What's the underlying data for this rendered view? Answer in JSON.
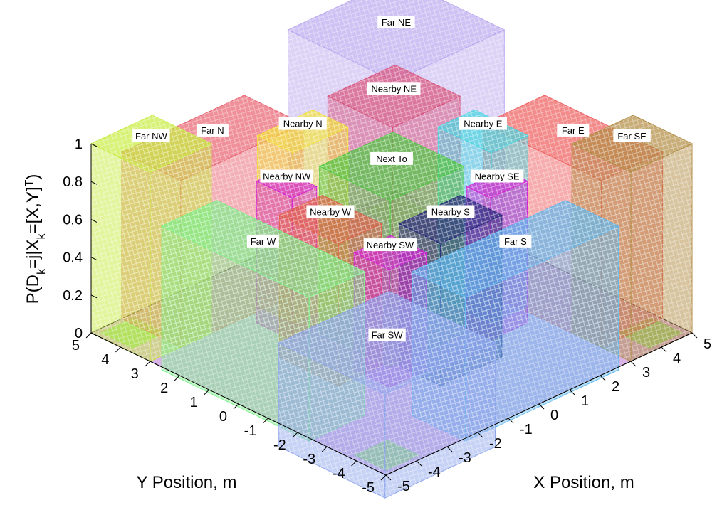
{
  "chart_data": {
    "type": "surface",
    "title": "",
    "xlabel": "X Position, m",
    "ylabel": "Y Position, m",
    "zlabel": "P(D_k=j|X_k=[X,Y]^T)",
    "zlabel_parts": {
      "p": "P(D",
      "k1": "k",
      "mid": "=j|X",
      "k2": "k",
      "eq": "=[X,Y]",
      "t": "T",
      "close": ")"
    },
    "xlim": [
      -5,
      5
    ],
    "ylim": [
      -5,
      5
    ],
    "zlim": [
      0,
      1
    ],
    "x_ticks": [
      "-5",
      "-4",
      "-3",
      "-2",
      "-1",
      "0",
      "1",
      "2",
      "3",
      "4",
      "5"
    ],
    "y_ticks": [
      "-5",
      "-4",
      "-3",
      "-2",
      "-1",
      "0",
      "1",
      "2",
      "3",
      "4",
      "5"
    ],
    "z_ticks": [
      "0",
      "0.2",
      "0.4",
      "0.6",
      "0.8",
      "1"
    ],
    "grid": false,
    "series": [
      {
        "name": "Far NE",
        "color": "#b9a6ee"
      },
      {
        "name": "Far N",
        "color": "#e8606e"
      },
      {
        "name": "Far E",
        "color": "#ee5a5a"
      },
      {
        "name": "Nearby NE",
        "color": "#d8507a"
      },
      {
        "name": "Nearby N",
        "color": "#f2e23a"
      },
      {
        "name": "Nearby E",
        "color": "#44d6e0"
      },
      {
        "name": "Far NW",
        "color": "#c6ec3c"
      },
      {
        "name": "Nearby NW",
        "color": "#d424d4"
      },
      {
        "name": "Next To",
        "color": "#4cc83e"
      },
      {
        "name": "Nearby SE",
        "color": "#d424d4"
      },
      {
        "name": "Far SE",
        "color": "#b08a40"
      },
      {
        "name": "Nearby W",
        "color": "#e06048"
      },
      {
        "name": "Nearby S",
        "color": "#26267a"
      },
      {
        "name": "Nearby SW",
        "color": "#d424d4"
      },
      {
        "name": "Far W",
        "color": "#7cf08a"
      },
      {
        "name": "Far S",
        "color": "#60b8f0"
      },
      {
        "name": "Far SW",
        "color": "#8ea6ec"
      }
    ]
  }
}
